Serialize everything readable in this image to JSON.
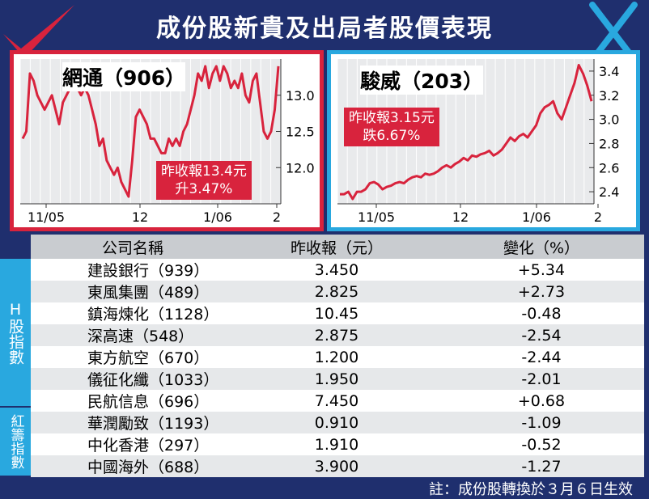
{
  "title": "成份股新貴及出局者股價表現",
  "colors": {
    "navy": "#1f2f6e",
    "red": "#d8233d",
    "blue": "#29a8df"
  },
  "icons": [
    "check-icon",
    "cross-icon"
  ],
  "chart_data": [
    {
      "type": "line",
      "stock_name": "網通（906）",
      "note_line1": "昨收報13.4元",
      "note_line2": "升3.47%",
      "x_ticks": [
        "11/05",
        "12",
        "1/06",
        "2"
      ],
      "y_ticks": [
        "12.0",
        "12.5",
        "13.0"
      ],
      "ylim": [
        11.5,
        13.5
      ],
      "values": [
        12.4,
        12.5,
        13.3,
        13.2,
        13.0,
        12.9,
        12.8,
        12.9,
        13.0,
        12.8,
        12.6,
        12.9,
        13.0,
        13.1,
        13.1,
        13.1,
        13.0,
        13.1,
        13.0,
        12.8,
        12.6,
        12.3,
        12.4,
        12.1,
        12.0,
        11.9,
        12.0,
        11.8,
        11.7,
        11.6,
        12.1,
        12.7,
        12.8,
        12.7,
        12.6,
        12.4,
        12.4,
        12.3,
        12.2,
        12.2,
        12.4,
        12.3,
        12.4,
        12.3,
        12.5,
        12.6,
        12.8,
        13.0,
        13.3,
        13.2,
        13.4,
        13.1,
        13.3,
        13.4,
        13.2,
        13.4,
        13.3,
        13.1,
        13.2,
        13.1,
        13.3,
        13.0,
        12.9,
        13.2,
        13.3,
        12.9,
        12.5,
        12.4,
        12.5,
        12.8,
        13.4
      ]
    },
    {
      "type": "line",
      "stock_name": "駿威（203）",
      "note_line1": "昨收報3.15元",
      "note_line2": "跌6.67%",
      "x_ticks": [
        "11/05",
        "12",
        "1/06",
        "2"
      ],
      "y_ticks": [
        "2.4",
        "2.6",
        "2.8",
        "3.0",
        "3.2",
        "3.4"
      ],
      "ylim": [
        2.3,
        3.5
      ],
      "values": [
        2.38,
        2.38,
        2.4,
        2.34,
        2.4,
        2.4,
        2.42,
        2.47,
        2.48,
        2.46,
        2.42,
        2.44,
        2.45,
        2.47,
        2.48,
        2.47,
        2.5,
        2.52,
        2.53,
        2.52,
        2.55,
        2.54,
        2.55,
        2.57,
        2.6,
        2.62,
        2.6,
        2.63,
        2.65,
        2.68,
        2.66,
        2.7,
        2.69,
        2.71,
        2.72,
        2.74,
        2.7,
        2.72,
        2.75,
        2.8,
        2.85,
        2.82,
        2.86,
        2.88,
        2.85,
        2.9,
        2.95,
        3.05,
        3.1,
        3.12,
        3.15,
        3.05,
        3.0,
        3.1,
        3.2,
        3.3,
        3.45,
        3.38,
        3.28,
        3.15
      ]
    }
  ],
  "table": {
    "headers": [
      "公司名稱",
      "昨收報（元）",
      "變化（%）"
    ],
    "group_h": "H股指數",
    "group_red": "紅籌指數",
    "rows": [
      {
        "name": "建設銀行（939）",
        "close": "3.450",
        "change": "+5.34"
      },
      {
        "name": "東風集團（489）",
        "close": "2.825",
        "change": "+2.73"
      },
      {
        "name": "鎮海煉化（1128）",
        "close": "10.45",
        "change": "-0.48"
      },
      {
        "name": "深高速（548）",
        "close": "2.875",
        "change": "-2.54"
      },
      {
        "name": "東方航空（670）",
        "close": "1.200",
        "change": "-2.44"
      },
      {
        "name": "儀征化纖（1033）",
        "close": "1.950",
        "change": "-2.01"
      },
      {
        "name": "民航信息（696）",
        "close": "7.450",
        "change": "+0.68"
      },
      {
        "name": "華潤勵致（1193）",
        "close": "0.910",
        "change": "-1.09"
      },
      {
        "name": "中化香港（297）",
        "close": "1.910",
        "change": "-0.52"
      },
      {
        "name": "中國海外（688）",
        "close": "3.900",
        "change": "-1.27"
      }
    ]
  },
  "footer": "註：成份股轉換於３月６日生效"
}
